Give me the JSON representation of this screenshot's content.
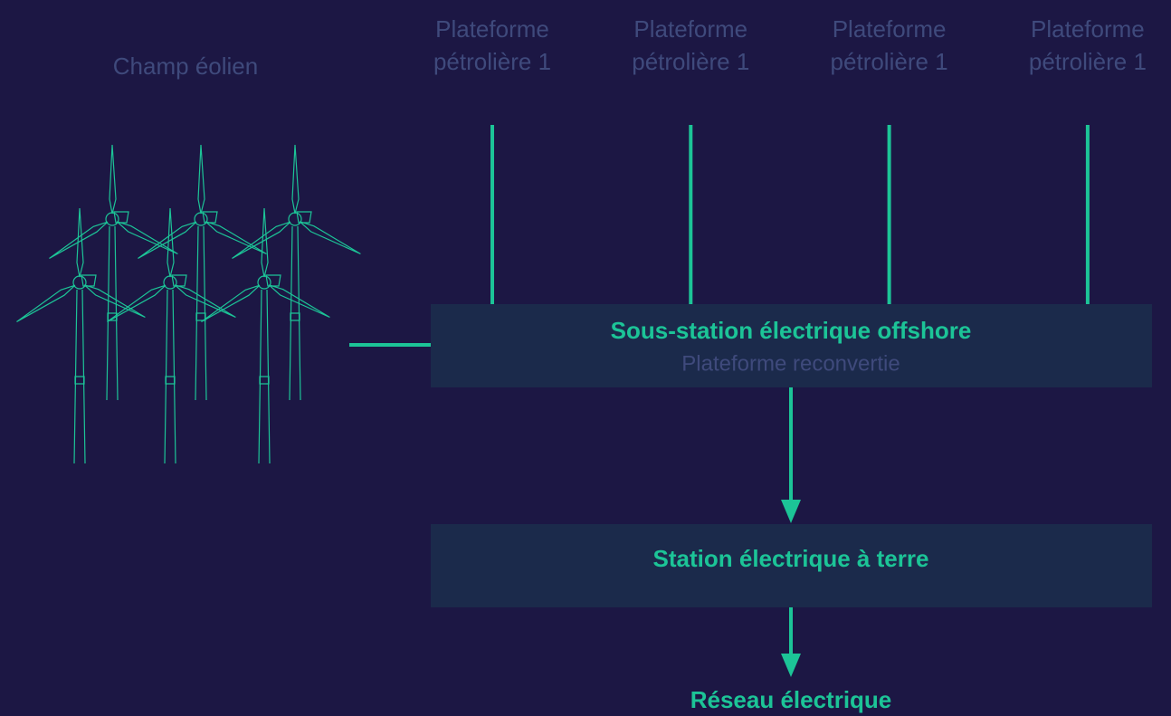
{
  "wind_farm": {
    "label": "Champ éolien"
  },
  "platforms": [
    {
      "line1": "Plateforme",
      "line2": "pétrolière 1"
    },
    {
      "line1": "Plateforme",
      "line2": "pétrolière 1"
    },
    {
      "line1": "Plateforme",
      "line2": "pétrolière 1"
    },
    {
      "line1": "Plateforme",
      "line2": "pétrolière 1"
    }
  ],
  "offshore_substation": {
    "title": "Sous-station électrique offshore",
    "subtitle": "Plateforme reconvertie"
  },
  "onshore_station": {
    "title": "Station électrique à terre"
  },
  "grid": {
    "label": "Réseau électrique"
  }
}
